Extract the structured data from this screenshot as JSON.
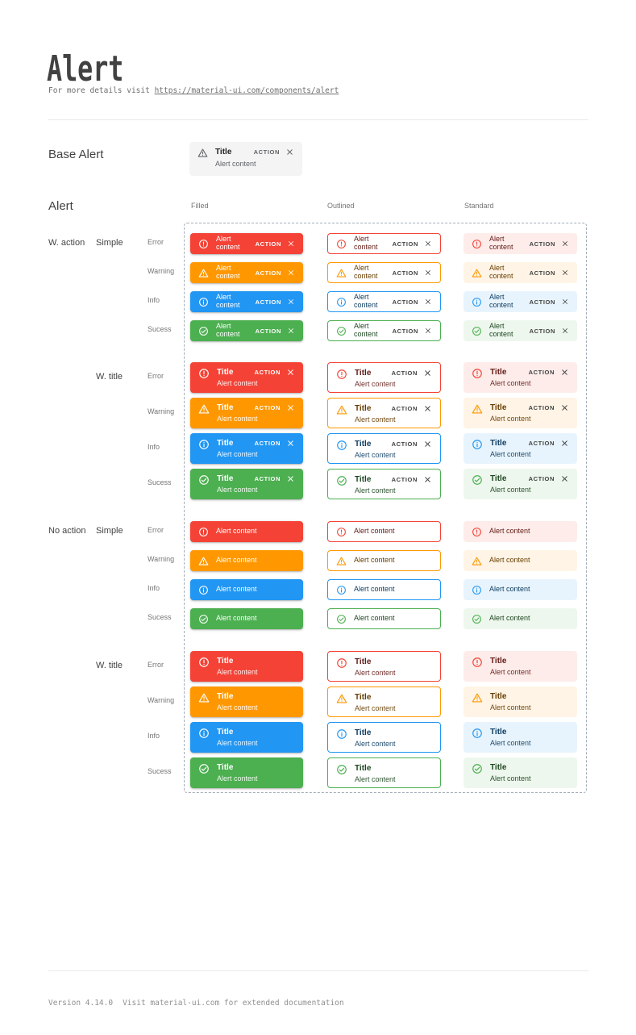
{
  "page": {
    "title": "Alert",
    "subtitle_prefix": "For more details visit ",
    "subtitle_link": "https://material-ui.com/components/alert"
  },
  "base_section": {
    "label": "Base Alert"
  },
  "base_alert": {
    "title": "Title",
    "content": "Alert content",
    "action": "ACTION",
    "bg": "#f4f4f4",
    "icon": "warning",
    "icon_color": "#5f6368",
    "title_color": "#212121",
    "action_color": "#5f6368"
  },
  "alerts": {
    "section_label": "Alert",
    "columns": [
      "Filled",
      "Outlined",
      "Standard"
    ],
    "row_groups": [
      {
        "label": "W. action",
        "subgroups": [
          "Simple",
          "W. title"
        ]
      },
      {
        "label": "No action",
        "subgroups": [
          "Simple",
          "W. title"
        ]
      }
    ],
    "title": "Title",
    "content": "Alert content",
    "action": "ACTION",
    "action_dark_color": "#424242",
    "filled_text_color": "#ffffff",
    "dashed_border_color": "#a3adb8",
    "severities": [
      {
        "name": "error",
        "label": "Error",
        "icon": "error",
        "main": "#f44336",
        "standard_bg": "#fdecea",
        "text": "#611a15"
      },
      {
        "name": "warning",
        "label": "Warning",
        "icon": "warning",
        "main": "#ff9800",
        "standard_bg": "#fff4e5",
        "text": "#663c00"
      },
      {
        "name": "info",
        "label": "Info",
        "icon": "info",
        "main": "#2196f3",
        "standard_bg": "#e8f4fd",
        "text": "#0d3c61"
      },
      {
        "name": "success",
        "label": "Sucess",
        "icon": "success",
        "main": "#4caf50",
        "standard_bg": "#edf7ed",
        "text": "#1e4620"
      }
    ]
  },
  "footer": {
    "version": "Version 4.14.0",
    "note": "Visit material-ui.com for extended documentation"
  }
}
